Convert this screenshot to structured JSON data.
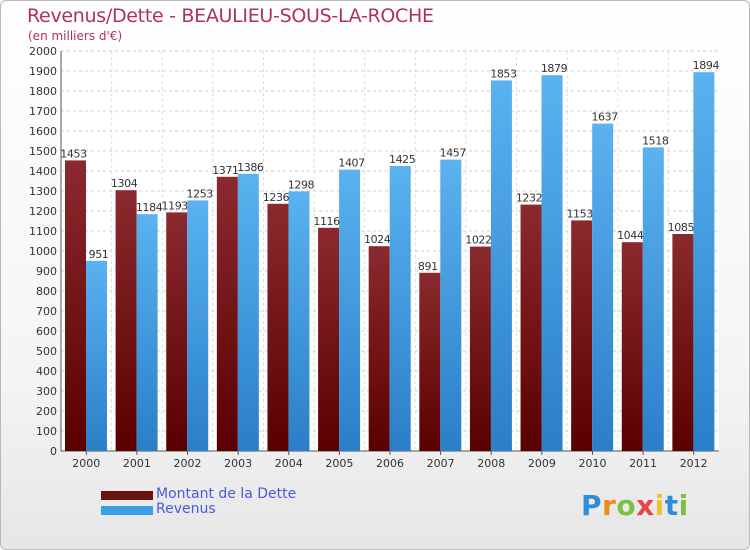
{
  "header": {
    "title": "Revenus/Dette - BEAULIEU-SOUS-LA-ROCHE",
    "subtitle": "(en milliers d'€)"
  },
  "chart_data": {
    "type": "bar",
    "title": "Revenus/Dette - BEAULIEU-SOUS-LA-ROCHE",
    "subtitle": "(en milliers d'€)",
    "xlabel": "",
    "ylabel": "",
    "categories": [
      "2000",
      "2001",
      "2002",
      "2003",
      "2004",
      "2005",
      "2006",
      "2007",
      "2008",
      "2009",
      "2010",
      "2011",
      "2012"
    ],
    "series": [
      {
        "name": "Montant de la Dette",
        "color": "#6e1111",
        "values": [
          1453,
          1304,
          1193,
          1371,
          1236,
          1116,
          1024,
          891,
          1022,
          1232,
          1153,
          1044,
          1085
        ]
      },
      {
        "name": "Revenus",
        "color": "#3d9ee8",
        "values": [
          951,
          1184,
          1253,
          1386,
          1298,
          1407,
          1425,
          1457,
          1853,
          1879,
          1637,
          1518,
          1894
        ]
      }
    ],
    "ylim": [
      0,
      2000
    ],
    "yticks": [
      0,
      100,
      200,
      300,
      400,
      500,
      600,
      700,
      800,
      900,
      1000,
      1100,
      1200,
      1300,
      1400,
      1500,
      1600,
      1700,
      1800,
      1900,
      2000
    ],
    "grid": true,
    "legend": "bottom-left"
  },
  "legend": {
    "items": [
      {
        "label": "Montant de la Dette",
        "color": "#6e1111"
      },
      {
        "label": "Revenus",
        "color": "#3d9ee8"
      }
    ]
  },
  "logo": {
    "letters": [
      "P",
      "r",
      "o",
      "x",
      "i",
      "t",
      "i"
    ],
    "colors": [
      "#2e8fd6",
      "#f08a1c",
      "#7cc242",
      "#e84545",
      "#f2c12e",
      "#2e8fd6",
      "#7cc242"
    ]
  }
}
